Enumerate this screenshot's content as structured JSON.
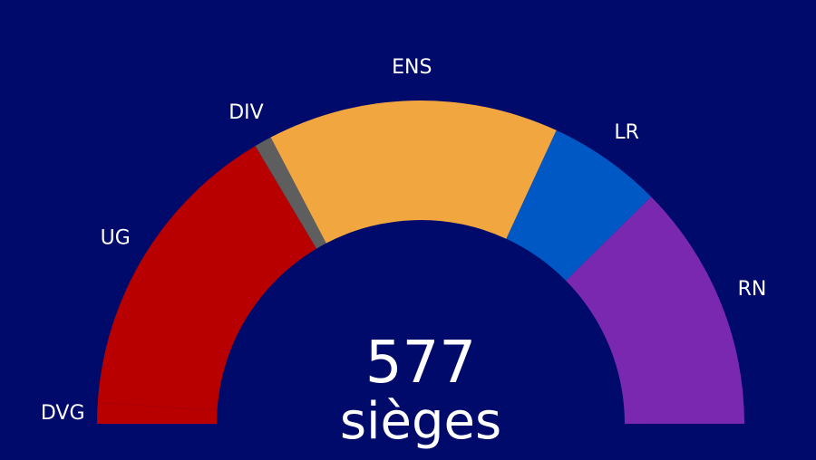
{
  "chart_data": {
    "type": "pie",
    "variant": "hemicycle",
    "total": "577",
    "total_unit": "sièges",
    "order": [
      "DVG",
      "UG",
      "DIV",
      "ENS",
      "LR",
      "RN"
    ],
    "series": [
      {
        "name": "DVG",
        "value": 12,
        "color": "#b80000"
      },
      {
        "name": "UG",
        "value": 178,
        "color": "#b80000"
      },
      {
        "name": "DIV",
        "value": 10,
        "color": "#5e5e5e"
      },
      {
        "name": "ENS",
        "value": 168,
        "color": "#f2a640"
      },
      {
        "name": "LR",
        "value": 66,
        "color": "#0058c4"
      },
      {
        "name": "RN",
        "value": 143,
        "color": "#7a28b0"
      }
    ],
    "background_color": "#000a6b",
    "label_color": "#ffffff"
  }
}
